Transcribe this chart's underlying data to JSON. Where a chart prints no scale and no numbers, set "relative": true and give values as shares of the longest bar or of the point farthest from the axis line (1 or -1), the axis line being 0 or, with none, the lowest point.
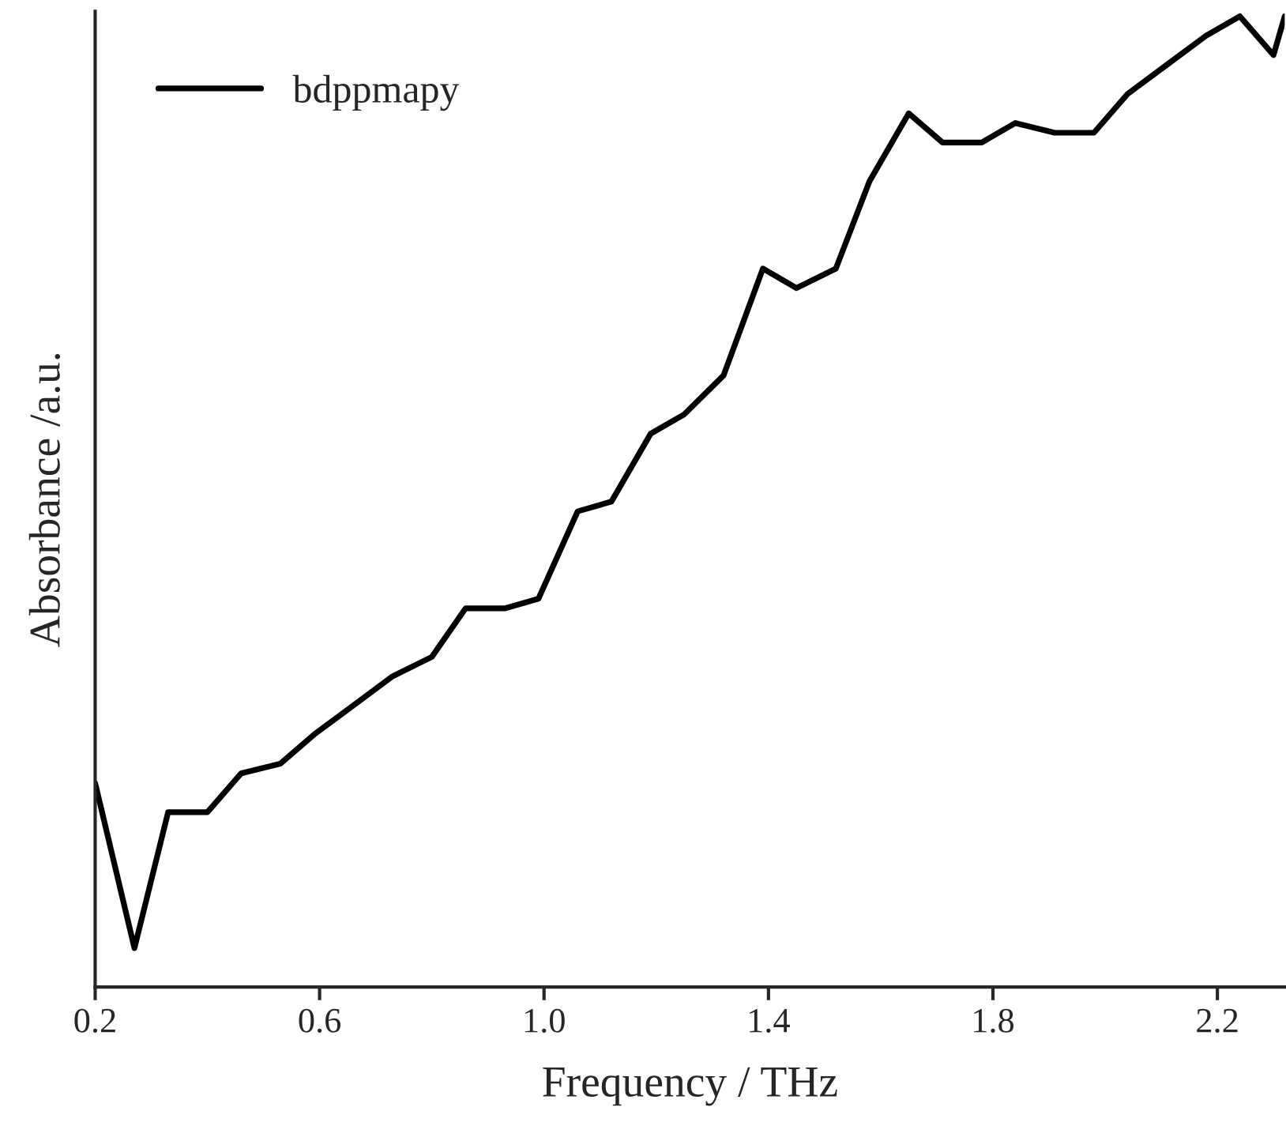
{
  "chart_data": {
    "type": "line",
    "xlabel": "Frequency / THz",
    "ylabel": "Absorbance /a.u.",
    "relative": true,
    "xlim": [
      0.2,
      2.32
    ],
    "xticks": [
      {
        "value": 0.2,
        "label": "0.2"
      },
      {
        "value": 0.6,
        "label": "0.6"
      },
      {
        "value": 1.0,
        "label": "1.0"
      },
      {
        "value": 1.4,
        "label": "1.4"
      },
      {
        "value": 1.8,
        "label": "1.8"
      },
      {
        "value": 2.2,
        "label": "2.2"
      }
    ],
    "legend": "top left",
    "grid": false,
    "series": [
      {
        "name": "bdppmapy",
        "color": "#000000",
        "x": [
          0.2,
          0.27,
          0.33,
          0.4,
          0.46,
          0.53,
          0.59,
          0.66,
          0.73,
          0.8,
          0.86,
          0.93,
          0.99,
          1.06,
          1.12,
          1.19,
          1.25,
          1.32,
          1.39,
          1.45,
          1.52,
          1.58,
          1.65,
          1.71,
          1.78,
          1.84,
          1.91,
          1.98,
          2.04,
          2.11,
          2.18,
          2.24,
          2.3,
          2.32
        ],
        "values": [
          0.21,
          0.04,
          0.18,
          0.18,
          0.22,
          0.23,
          0.26,
          0.29,
          0.32,
          0.34,
          0.39,
          0.39,
          0.4,
          0.49,
          0.5,
          0.57,
          0.59,
          0.63,
          0.74,
          0.72,
          0.74,
          0.83,
          0.9,
          0.87,
          0.87,
          0.89,
          0.88,
          0.88,
          0.92,
          0.95,
          0.98,
          1.0,
          0.96,
          1.0
        ]
      }
    ]
  }
}
